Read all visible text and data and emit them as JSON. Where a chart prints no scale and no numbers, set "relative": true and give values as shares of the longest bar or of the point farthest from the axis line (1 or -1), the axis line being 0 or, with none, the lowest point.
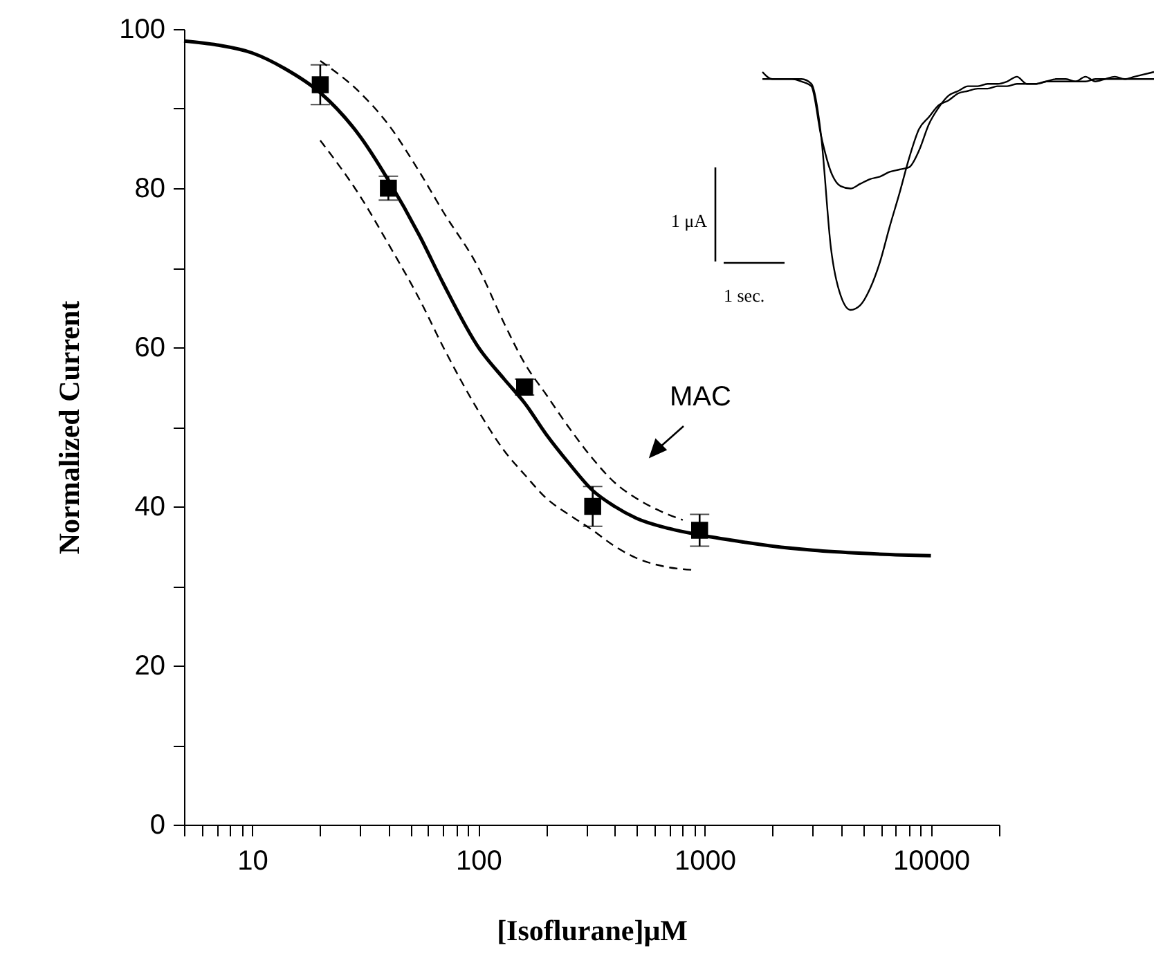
{
  "chart_data": [
    {
      "type": "scatter",
      "xlabel": "[Isoflurane]μM",
      "ylabel": "Normalized Current",
      "xlim": [
        5,
        20000
      ],
      "xticks": [
        {
          "value": 5,
          "label": null
        },
        {
          "value": 6,
          "label": null
        },
        {
          "value": 7,
          "label": null
        },
        {
          "value": 8,
          "label": null
        },
        {
          "value": 9,
          "label": null
        },
        10,
        {
          "value": 20,
          "label": null
        },
        {
          "value": 30,
          "label": null
        },
        {
          "value": 40,
          "label": null
        },
        {
          "value": 50,
          "label": null
        },
        {
          "value": 60,
          "label": null
        },
        {
          "value": 70,
          "label": null
        },
        {
          "value": 80,
          "label": null
        },
        {
          "value": 90,
          "label": null
        },
        100,
        {
          "value": 200,
          "label": null
        },
        {
          "value": 300,
          "label": null
        },
        {
          "value": 400,
          "label": null
        },
        {
          "value": 500,
          "label": null
        },
        {
          "value": 600,
          "label": null
        },
        {
          "value": 700,
          "label": null
        },
        {
          "value": 800,
          "label": null
        },
        {
          "value": 900,
          "label": null
        },
        1000,
        {
          "value": 2000,
          "label": null
        },
        {
          "value": 3000,
          "label": null
        },
        {
          "value": 4000,
          "label": null
        },
        {
          "value": 5000,
          "label": null
        },
        {
          "value": 6000,
          "label": null
        },
        {
          "value": 7000,
          "label": null
        },
        {
          "value": 8000,
          "label": null
        },
        {
          "value": 9000,
          "label": null
        },
        10000,
        {
          "value": 20000,
          "label": null
        }
      ],
      "ylim": [
        0,
        100
      ],
      "yticks": [
        0,
        {
          "value": 10,
          "label": null
        },
        20,
        {
          "value": 30,
          "label": null
        },
        40,
        {
          "value": 50,
          "label": null
        },
        60,
        {
          "value": 70,
          "label": null
        },
        80,
        {
          "value": 90,
          "label": null
        },
        100
      ],
      "log": "x",
      "series": [
        {
          "type": "scatter",
          "marker": "square",
          "color": "#000000",
          "x": [
            20,
            40,
            160,
            320,
            950
          ],
          "values": [
            93,
            80,
            55,
            40,
            37
          ],
          "errors": [
            2.5,
            1.5,
            1,
            2.5,
            2
          ]
        },
        {
          "type": "line",
          "line_style": "solid",
          "color": "#000000",
          "x": [
            5,
            7,
            10,
            14,
            20,
            30,
            40,
            55,
            70,
            100,
            130,
            160,
            200,
            250,
            320,
            400,
            500,
            700,
            1000,
            1500,
            2000,
            3000,
            5000,
            10000
          ],
          "values": [
            98.5,
            98,
            97,
            95,
            92,
            86.5,
            81,
            74,
            68,
            60,
            56,
            53,
            49,
            45.5,
            42,
            40,
            38.5,
            37.2,
            36.3,
            35.5,
            35,
            34.5,
            34.1,
            33.8
          ]
        },
        {
          "type": "line",
          "line_style": "dashed",
          "color": "#000000",
          "x": [
            20,
            30,
            40,
            55,
            70,
            100,
            130,
            160,
            200,
            250,
            320,
            400,
            500,
            650,
            800
          ],
          "values": [
            96,
            92,
            88,
            82,
            77,
            70,
            63,
            58,
            54,
            50,
            46,
            43,
            41,
            39.3,
            38.3
          ]
        },
        {
          "type": "line",
          "line_style": "dashed",
          "color": "#000000",
          "x": [
            20,
            30,
            40,
            55,
            70,
            100,
            130,
            160,
            200,
            250,
            320,
            400,
            500,
            650,
            900
          ],
          "values": [
            86,
            79,
            73,
            66,
            60,
            52,
            47,
            44,
            41,
            39,
            37,
            35,
            33.5,
            32.5,
            32
          ]
        }
      ],
      "annotations": [
        "MAC"
      ]
    },
    {
      "type": "line",
      "relative": true,
      "categories": [
        null,
        null,
        null,
        null,
        null,
        null,
        null,
        null,
        null,
        null,
        null,
        null,
        null,
        null,
        null,
        null,
        null,
        null,
        null,
        null,
        null,
        null,
        null,
        null,
        null,
        null,
        null,
        null,
        null,
        null,
        null,
        null,
        null,
        null,
        null,
        null,
        null,
        null,
        null,
        null,
        null
      ],
      "series": [
        {
          "color": "#000000",
          "values": [
            0.97,
            0.97,
            0.97,
            0.97,
            0.97,
            0.95,
            0.73,
            0.26,
            0.06,
            0,
            0.02,
            0.09,
            0.2,
            0.35,
            0.49,
            0.64,
            0.76,
            0.81,
            0.86,
            0.88,
            0.91,
            0.92,
            0.93,
            0.93,
            0.94,
            0.94,
            0.95,
            0.95,
            0.95,
            0.96,
            0.96,
            0.96,
            0.96,
            0.96,
            0.97,
            0.97,
            0.97,
            0.97,
            0.97,
            0.97,
            0.97
          ]
        },
        {
          "color": "#000000",
          "values": [
            1,
            0.97,
            0.97,
            0.97,
            0.96,
            0.94,
            0.73,
            0.58,
            0.52,
            0.51,
            0.53,
            0.55,
            0.56,
            0.58,
            0.59,
            0.6,
            0.67,
            0.78,
            0.85,
            0.9,
            0.92,
            0.94,
            0.94,
            0.95,
            0.95,
            0.96,
            0.98,
            0.95,
            0.95,
            0.96,
            0.97,
            0.97,
            0.96,
            0.98,
            0.96,
            0.97,
            0.98,
            0.97,
            0.98,
            0.99,
            1
          ]
        }
      ],
      "annotations": [
        "1 μA",
        "1 sec."
      ]
    }
  ]
}
